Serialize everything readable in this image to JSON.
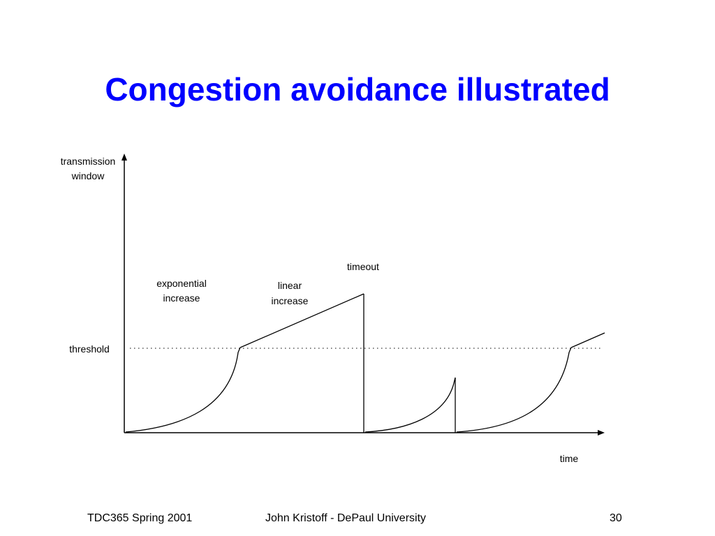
{
  "slide": {
    "title": "Congestion avoidance illustrated"
  },
  "diagram": {
    "y_axis_label_line1": "transmission",
    "y_axis_label_line2": "window",
    "x_axis_label": "time",
    "threshold_label": "threshold",
    "annotations": {
      "exponential_line1": "exponential",
      "exponential_line2": "increase",
      "linear_line1": "linear",
      "linear_line2": "increase",
      "timeout": "timeout"
    },
    "line_color": "#000000"
  },
  "footer": {
    "left": "TDC365 Spring 2001",
    "center": "John Kristoff - DePaul University",
    "page_number": "30"
  }
}
